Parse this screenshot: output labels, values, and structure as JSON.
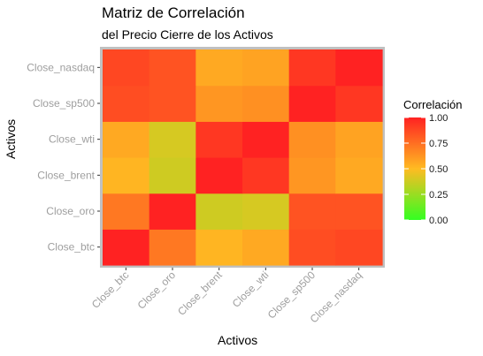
{
  "chart_data": {
    "type": "heatmap",
    "title": "Matriz de Correlación",
    "subtitle": "del Precio Cierre de los Activos",
    "xlabel": "Activos",
    "ylabel": "Activos",
    "x_categories": [
      "Close_btc",
      "Close_oro",
      "Close_brent",
      "Close_wti",
      "Close_sp500",
      "Close_nasdaq"
    ],
    "y_categories": [
      "Close_btc",
      "Close_oro",
      "Close_brent",
      "Close_wti",
      "Close_sp500",
      "Close_nasdaq"
    ],
    "values": [
      [
        1.0,
        0.72,
        0.52,
        0.56,
        0.86,
        0.88
      ],
      [
        0.72,
        1.0,
        0.38,
        0.4,
        0.84,
        0.84
      ],
      [
        0.52,
        0.38,
        1.0,
        0.93,
        0.62,
        0.56
      ],
      [
        0.56,
        0.4,
        0.93,
        1.0,
        0.64,
        0.58
      ],
      [
        0.86,
        0.84,
        0.62,
        0.64,
        1.0,
        0.93
      ],
      [
        0.88,
        0.84,
        0.56,
        0.58,
        0.93,
        1.0
      ]
    ],
    "legend": {
      "title": "Correlación",
      "placement": "right",
      "breaks": [
        "0.00",
        "0.25",
        "0.50",
        "0.75",
        "1.00"
      ],
      "range": [
        0,
        1
      ]
    },
    "colors": {
      "low": "#33ff22",
      "mid": "#ffbb22",
      "high": "#ff2222",
      "panel_border": "#c0c0c0",
      "axis_text": "#9e9e9e",
      "axis_tick": "#333333"
    },
    "grid": false
  }
}
